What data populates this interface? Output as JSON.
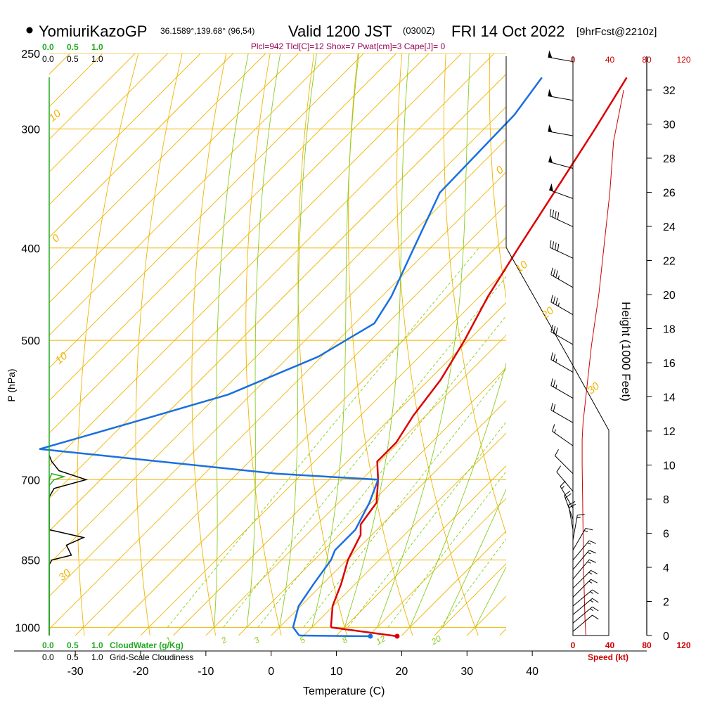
{
  "header": {
    "station": "YomiuriKazoGP",
    "coords": "36.1589°,139.68° (96,54)",
    "valid": "Valid 1200 JST",
    "zulu": "(0300Z)",
    "date": "FRI 14 Oct 2022",
    "forecast": "[9hrFcst@2210z]",
    "indices": "Plcl=942 Tlcl[C]=12 Shox=7 Pwat[cm]=3 Cape[J]= 0"
  },
  "cloud_scale": {
    "water_ticks": [
      "0.0",
      "0.5",
      "1.0"
    ],
    "cover_ticks": [
      "0.0",
      "0.5",
      "1.0"
    ],
    "water_label": "CloudWater (g/Kg)",
    "cover_label": "Grid-Scale Cloudiness"
  },
  "axes": {
    "ylabel": "P (hPa)",
    "xlabel": "Temperature (C)",
    "height_label": "Height (1000 Feet)",
    "speed_label": "Speed (kt)"
  },
  "colors": {
    "temperature": "#dd0000",
    "dewpoint": "#1a6fe0",
    "isotherm": "#f0b400",
    "mixing_ratio": "#88cc22",
    "cloud_water": "#22aa22",
    "cloudiness": "#000000",
    "speed": "#cc0000",
    "indices": "#990055"
  },
  "chart_data": {
    "type": "line",
    "y_scale": "log-pressure",
    "x_range": [
      -34,
      36
    ],
    "pressure_range": [
      1020,
      250
    ],
    "pressure_ticks": [
      250,
      300,
      400,
      500,
      700,
      850,
      1000
    ],
    "temperature_ticks": [
      -30,
      -20,
      -10,
      0,
      10,
      20,
      30,
      40
    ],
    "height_ticks_kft": [
      0,
      2,
      4,
      6,
      8,
      10,
      12,
      14,
      16,
      18,
      20,
      22,
      24,
      26,
      28,
      30,
      32
    ],
    "speed_ticks_kt": [
      0,
      40,
      80,
      120
    ],
    "dry_adiabat_labels": [
      {
        "text": "10",
        "p": 295,
        "t": -33.5
      },
      {
        "text": "0",
        "p": 395,
        "t": -33
      },
      {
        "text": "10",
        "p": 530,
        "t": -32.5
      },
      {
        "text": "0",
        "p": 335,
        "t": 35
      },
      {
        "text": "10",
        "p": 425,
        "t": 38
      },
      {
        "text": "20",
        "p": 475,
        "t": 42
      },
      {
        "text": "30",
        "p": 570,
        "t": 49
      },
      {
        "text": "30",
        "p": 895,
        "t": -32
      }
    ],
    "mixing_ratio_labels": [
      {
        "text": "1",
        "t": -15.5
      },
      {
        "text": "2",
        "t": -7
      },
      {
        "text": "3",
        "t": -2
      },
      {
        "text": "5",
        "t": 5
      },
      {
        "text": "8",
        "t": 11.5
      },
      {
        "text": "12",
        "t": 17
      },
      {
        "text": "20",
        "t": 25.5
      }
    ],
    "series": [
      {
        "name": "",
        "kind": "temperature",
        "points": [
          [
            265,
            -31
          ],
          [
            300,
            -28
          ],
          [
            350,
            -24.5
          ],
          [
            400,
            -21.5
          ],
          [
            450,
            -18.7
          ],
          [
            500,
            -15.6
          ],
          [
            550,
            -13.2
          ],
          [
            600,
            -11.9
          ],
          [
            640,
            -10.4
          ],
          [
            670,
            -10.4
          ],
          [
            700,
            -7.5
          ],
          [
            740,
            -4.2
          ],
          [
            780,
            -3.3
          ],
          [
            800,
            -1.7
          ],
          [
            850,
            0.2
          ],
          [
            900,
            2.8
          ],
          [
            950,
            4.9
          ],
          [
            1000,
            7.9
          ]
        ]
      },
      {
        "name": "",
        "kind": "dewpoint",
        "points": [
          [
            265,
            -44
          ],
          [
            290,
            -42.5
          ],
          [
            350,
            -42
          ],
          [
            400,
            -37.5
          ],
          [
            450,
            -33.5
          ],
          [
            480,
            -32
          ],
          [
            520,
            -35.5
          ],
          [
            570,
            -43.5
          ],
          [
            610,
            -54
          ],
          [
            650,
            -64
          ],
          [
            690,
            -24
          ],
          [
            700,
            -7.5
          ],
          [
            740,
            -5.3
          ],
          [
            790,
            -3.3
          ],
          [
            830,
            -3.3
          ],
          [
            850,
            -2.4
          ],
          [
            900,
            -1.4
          ],
          [
            950,
            -0.3
          ],
          [
            1000,
            2.1
          ],
          [
            1020,
            4.3
          ]
        ]
      }
    ],
    "surface_points": [
      {
        "kind": "temperature",
        "p": 1020,
        "t": 19.3
      },
      {
        "kind": "dewpoint",
        "p": 1020,
        "t": 15.2
      }
    ],
    "height_profile_kft": [
      [
        0,
        14
      ],
      [
        1,
        13
      ],
      [
        2,
        12.5
      ],
      [
        3,
        12
      ],
      [
        4,
        11.5
      ],
      [
        6,
        11
      ],
      [
        8,
        10.5
      ],
      [
        10,
        10
      ],
      [
        11.5,
        10
      ],
      [
        12.5,
        11
      ],
      [
        13.5,
        13
      ],
      [
        15,
        16
      ],
      [
        17,
        20
      ],
      [
        20,
        28
      ],
      [
        23,
        34
      ],
      [
        26,
        40
      ],
      [
        29,
        44
      ],
      [
        32,
        55
      ]
    ],
    "cloud_water": [
      [
        1020,
        0
      ],
      [
        700,
        0
      ],
      [
        690,
        0.05
      ],
      [
        695,
        0.3
      ],
      [
        700,
        0.1
      ],
      [
        710,
        0
      ]
    ],
    "cloud_fraction": [
      [
        1020,
        0
      ],
      [
        860,
        0
      ],
      [
        850,
        0.05
      ],
      [
        840,
        0.45
      ],
      [
        820,
        0.35
      ],
      [
        805,
        0.7
      ],
      [
        790,
        0
      ],
      [
        730,
        0
      ],
      [
        715,
        0.1
      ],
      [
        700,
        0.75
      ],
      [
        685,
        0.2
      ],
      [
        670,
        0.05
      ],
      [
        660,
        0
      ]
    ],
    "wind_barbs": [
      {
        "p": 255,
        "dir": 280,
        "kt": 50
      },
      {
        "p": 280,
        "dir": 280,
        "kt": 50
      },
      {
        "p": 305,
        "dir": 280,
        "kt": 50
      },
      {
        "p": 330,
        "dir": 285,
        "kt": 50
      },
      {
        "p": 355,
        "dir": 290,
        "kt": 50
      },
      {
        "p": 380,
        "dir": 295,
        "kt": 40
      },
      {
        "p": 410,
        "dir": 295,
        "kt": 40
      },
      {
        "p": 440,
        "dir": 300,
        "kt": 35
      },
      {
        "p": 470,
        "dir": 300,
        "kt": 35
      },
      {
        "p": 505,
        "dir": 300,
        "kt": 30
      },
      {
        "p": 540,
        "dir": 300,
        "kt": 25
      },
      {
        "p": 575,
        "dir": 300,
        "kt": 25
      },
      {
        "p": 610,
        "dir": 300,
        "kt": 20
      },
      {
        "p": 645,
        "dir": 305,
        "kt": 15
      },
      {
        "p": 690,
        "dir": 315,
        "kt": 10
      },
      {
        "p": 720,
        "dir": 320,
        "kt": 10
      },
      {
        "p": 750,
        "dir": 330,
        "kt": 15
      },
      {
        "p": 770,
        "dir": 340,
        "kt": 20
      },
      {
        "p": 790,
        "dir": 350,
        "kt": 20
      },
      {
        "p": 810,
        "dir": 10,
        "kt": 15
      },
      {
        "p": 830,
        "dir": 30,
        "kt": 15
      },
      {
        "p": 850,
        "dir": 40,
        "kt": 15
      },
      {
        "p": 870,
        "dir": 40,
        "kt": 15
      },
      {
        "p": 890,
        "dir": 40,
        "kt": 15
      },
      {
        "p": 910,
        "dir": 45,
        "kt": 15
      },
      {
        "p": 930,
        "dir": 45,
        "kt": 15
      },
      {
        "p": 950,
        "dir": 50,
        "kt": 15
      },
      {
        "p": 970,
        "dir": 50,
        "kt": 15
      },
      {
        "p": 990,
        "dir": 50,
        "kt": 15
      },
      {
        "p": 1010,
        "dir": 50,
        "kt": 10
      }
    ]
  }
}
